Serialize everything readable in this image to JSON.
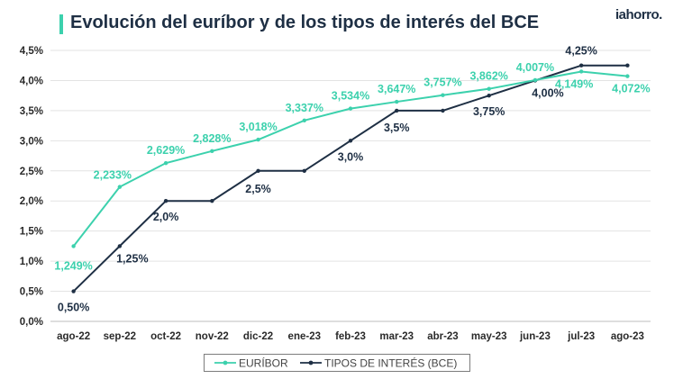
{
  "title": "Evolución del euríbor y de los tipos de interés del BCE",
  "brand": "iahorro.",
  "colors": {
    "euribor": "#3cd1ad",
    "bce": "#1e2f44",
    "title_accent": "#3cd1ad"
  },
  "chart_data": {
    "type": "line",
    "categories": [
      "ago-22",
      "sep-22",
      "oct-22",
      "nov-22",
      "dic-22",
      "ene-23",
      "feb-23",
      "mar-23",
      "abr-23",
      "may-23",
      "jun-23",
      "jul-23",
      "ago-23"
    ],
    "series": [
      {
        "name": "EURÍBOR",
        "values": [
          1.249,
          2.233,
          2.629,
          2.828,
          3.018,
          3.337,
          3.534,
          3.647,
          3.757,
          3.862,
          4.007,
          4.149,
          4.072
        ],
        "labels": [
          "1,249%",
          "2,233%",
          "2,629%",
          "2,828%",
          "3,018%",
          "3,337%",
          "3,534%",
          "3,647%",
          "3,757%",
          "3,862%",
          "4,007%",
          "4,149%",
          "4,072%"
        ]
      },
      {
        "name": "TIPOS DE INTERÉS (BCE)",
        "values": [
          0.5,
          1.25,
          2.0,
          2.0,
          2.5,
          2.5,
          3.0,
          3.5,
          3.5,
          3.75,
          4.0,
          4.25,
          4.25
        ],
        "labels": [
          "0,50%",
          "1,25%",
          "2,0%",
          "",
          "2,5%",
          "",
          "3,0%",
          "3,5%",
          "",
          "3,75%",
          "4,00%",
          "4,25%",
          ""
        ]
      }
    ],
    "yticks": [
      0,
      0.5,
      1,
      1.5,
      2,
      2.5,
      3,
      3.5,
      4,
      4.5
    ],
    "ytick_labels": [
      "0,0%",
      "0,5%",
      "1,0%",
      "1,5%",
      "2,0%",
      "2,5%",
      "3,0%",
      "3,5%",
      "4,0%",
      "4,5%"
    ],
    "ylim": [
      0,
      4.5
    ],
    "grid": true,
    "legend": "bottom"
  }
}
